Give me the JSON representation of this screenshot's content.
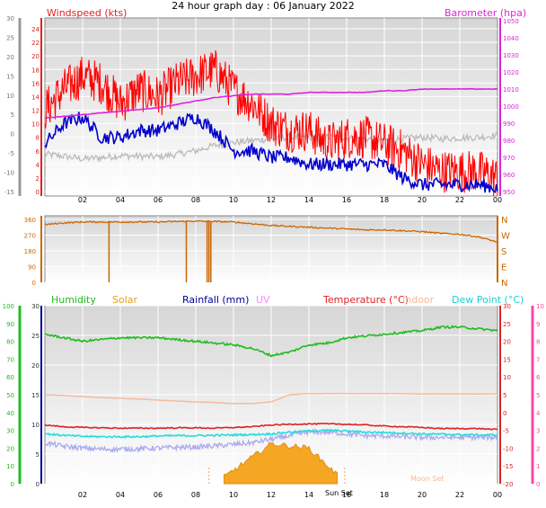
{
  "title": "24 hour graph day : 06 January 2022",
  "colors": {
    "gust": "#ff0000",
    "avg_wind": "#0000cc",
    "barometer": "#dd22dd",
    "direction": "#cc6600",
    "humidity": "#22bb22",
    "solar": "#f5a623",
    "rainfall": "#000099",
    "uv": "#ff88ff",
    "temperature": "#dd2222",
    "indoor": "#f4b89a",
    "dewpoint": "#22dddd",
    "windchill_trace": "#aaaaee",
    "grey_trace": "#bbbbbb"
  },
  "x_ticks": [
    "02",
    "04",
    "06",
    "08",
    "10",
    "12",
    "14",
    "16",
    "18",
    "20",
    "22",
    "00"
  ],
  "chart_data": [
    {
      "type": "line",
      "name": "wind-barometer",
      "legend": [
        "Windspeed (kts)",
        "Barometer (hpa)"
      ],
      "y_left_outer": {
        "ticks": [
          -15,
          -10,
          -5,
          0,
          5,
          10,
          15,
          20,
          25,
          30
        ]
      },
      "y_left_inner": {
        "ticks": [
          0,
          2,
          4,
          6,
          8,
          10,
          12,
          14,
          16,
          18,
          20,
          22,
          24
        ]
      },
      "y_right": {
        "ticks": [
          950,
          960,
          970,
          980,
          990,
          1000,
          1010,
          1020,
          1030,
          1040,
          1050
        ]
      },
      "hours": [
        0,
        1,
        2,
        3,
        4,
        5,
        6,
        7,
        8,
        9,
        10,
        11,
        12,
        13,
        14,
        15,
        16,
        17,
        18,
        19,
        20,
        21,
        22,
        23,
        24
      ],
      "series": [
        {
          "key": "gust",
          "unit": "kts",
          "values": [
            12,
            15,
            17,
            16,
            13,
            15,
            14,
            16,
            17,
            18,
            15,
            13,
            10,
            9,
            9,
            7,
            8,
            8,
            7,
            6,
            4,
            3,
            3,
            3,
            2
          ]
        },
        {
          "key": "avg_wind",
          "unit": "kts",
          "values": [
            7,
            10,
            11,
            8,
            8,
            9,
            9,
            10,
            11,
            9,
            6,
            6,
            5,
            5,
            4,
            4,
            4,
            4,
            4,
            2,
            1,
            1,
            1,
            1,
            0.5
          ]
        },
        {
          "key": "grey_trace",
          "unit": "kts",
          "values": [
            5.5,
            5.2,
            4.8,
            5,
            5.3,
            5.2,
            5.1,
            5.5,
            6,
            6.8,
            7.2,
            7.5,
            7.8,
            8,
            8,
            8,
            7.9,
            7.8,
            7.6,
            7.8,
            8,
            7.8,
            7.9,
            8,
            8.3
          ]
        },
        {
          "key": "barometer",
          "unit": "hpa",
          "values": [
            993,
            994,
            995,
            996,
            997,
            998,
            999,
            1001,
            1003,
            1005,
            1006,
            1007,
            1007,
            1007,
            1008,
            1008,
            1008,
            1008,
            1009,
            1009,
            1010,
            1010,
            1010,
            1010,
            1010
          ]
        }
      ]
    },
    {
      "type": "line",
      "name": "wind-direction",
      "y_left": {
        "ticks": [
          0,
          90,
          180,
          270,
          360
        ]
      },
      "y_right_labels": [
        "N",
        "W",
        "S",
        "E",
        "N"
      ],
      "hours": [
        0,
        1,
        2,
        3,
        4,
        5,
        6,
        7,
        8,
        9,
        10,
        11,
        12,
        13,
        14,
        15,
        16,
        17,
        18,
        19,
        20,
        21,
        22,
        23,
        24
      ],
      "values": [
        330,
        340,
        345,
        345,
        345,
        345,
        345,
        348,
        350,
        348,
        345,
        335,
        325,
        320,
        315,
        310,
        305,
        300,
        300,
        295,
        290,
        280,
        275,
        260,
        230
      ],
      "drops_to_zero_at_hours": [
        3.4,
        7.5,
        8.6,
        8.7,
        8.8
      ]
    },
    {
      "type": "line",
      "name": "humidity-temperature",
      "legend": [
        "Humidity",
        "Solar",
        "Rainfall (mm)",
        "UV",
        "Temperature (°C)",
        "Indoor",
        "Dew Point (°C)"
      ],
      "y_left_outer": {
        "ticks": [
          0,
          10,
          20,
          30,
          40,
          50,
          60,
          70,
          80,
          90,
          100
        ]
      },
      "y_left_inner": {
        "ticks": [
          0,
          5,
          10,
          15,
          20,
          25,
          30
        ]
      },
      "y_right_inner": {
        "ticks": [
          -20,
          -15,
          -10,
          -5,
          0,
          5,
          10,
          15,
          20,
          25,
          30
        ]
      },
      "y_right_outer": {
        "ticks": [
          0,
          1,
          2,
          3,
          4,
          5,
          6,
          7,
          8,
          9,
          10
        ]
      },
      "annotations": [
        "Sun Set",
        "Moon Set"
      ],
      "hours": [
        0,
        1,
        2,
        3,
        4,
        5,
        6,
        7,
        8,
        9,
        10,
        11,
        12,
        13,
        14,
        15,
        16,
        17,
        18,
        19,
        20,
        21,
        22,
        23,
        24
      ],
      "series": [
        {
          "key": "humidity",
          "unit": "%",
          "values": [
            84,
            82,
            80,
            81,
            82,
            82,
            82,
            81,
            80,
            79,
            78,
            76,
            72,
            74,
            78,
            79,
            82,
            83,
            84,
            85,
            86,
            88,
            88,
            87,
            86
          ]
        },
        {
          "key": "indoor",
          "unit": "°C",
          "values": [
            5,
            4.8,
            4.5,
            4.2,
            4,
            3.8,
            3.5,
            3.2,
            3,
            2.8,
            2.5,
            2.5,
            3,
            5,
            5.3,
            5.3,
            5.3,
            5.3,
            5.3,
            5.3,
            5.2,
            5.2,
            5.2,
            5.2,
            5.2
          ]
        },
        {
          "key": "temperature",
          "unit": "°C",
          "values": [
            -3.5,
            -4,
            -4.2,
            -4.3,
            -4.4,
            -4.4,
            -4.4,
            -4.3,
            -4.3,
            -4.4,
            -4.2,
            -4,
            -3.5,
            -3.3,
            -3.2,
            -3.2,
            -3.3,
            -3.5,
            -3.8,
            -4,
            -4.2,
            -4.5,
            -4.5,
            -4.5,
            -4.8
          ]
        },
        {
          "key": "dewpoint",
          "unit": "°C",
          "values": [
            -6,
            -6.4,
            -6.7,
            -6.8,
            -6.8,
            -6.8,
            -6.6,
            -6.5,
            -6.5,
            -6.4,
            -6.3,
            -6.2,
            -6,
            -5.5,
            -5.2,
            -5,
            -5.2,
            -5.5,
            -5.6,
            -5.8,
            -6,
            -6.1,
            -6.2,
            -6.3,
            -6.3
          ]
        },
        {
          "key": "windchill_trace",
          "unit": "°C",
          "values": [
            -8.5,
            -9.5,
            -10,
            -10.3,
            -10.3,
            -10.2,
            -10,
            -9.8,
            -9.7,
            -9.4,
            -9,
            -8.5,
            -7.5,
            -6.5,
            -5.5,
            -5.5,
            -6,
            -6.5,
            -6.6,
            -6.8,
            -7,
            -7,
            -7,
            -7,
            -7
          ]
        },
        {
          "key": "solar",
          "unit": "W/m²",
          "values": [
            0,
            0,
            0,
            0,
            0,
            0,
            0,
            0,
            0,
            0,
            30,
            60,
            90,
            85,
            80,
            40,
            0,
            0,
            0,
            0,
            0,
            0,
            0,
            0,
            0
          ]
        }
      ]
    }
  ]
}
